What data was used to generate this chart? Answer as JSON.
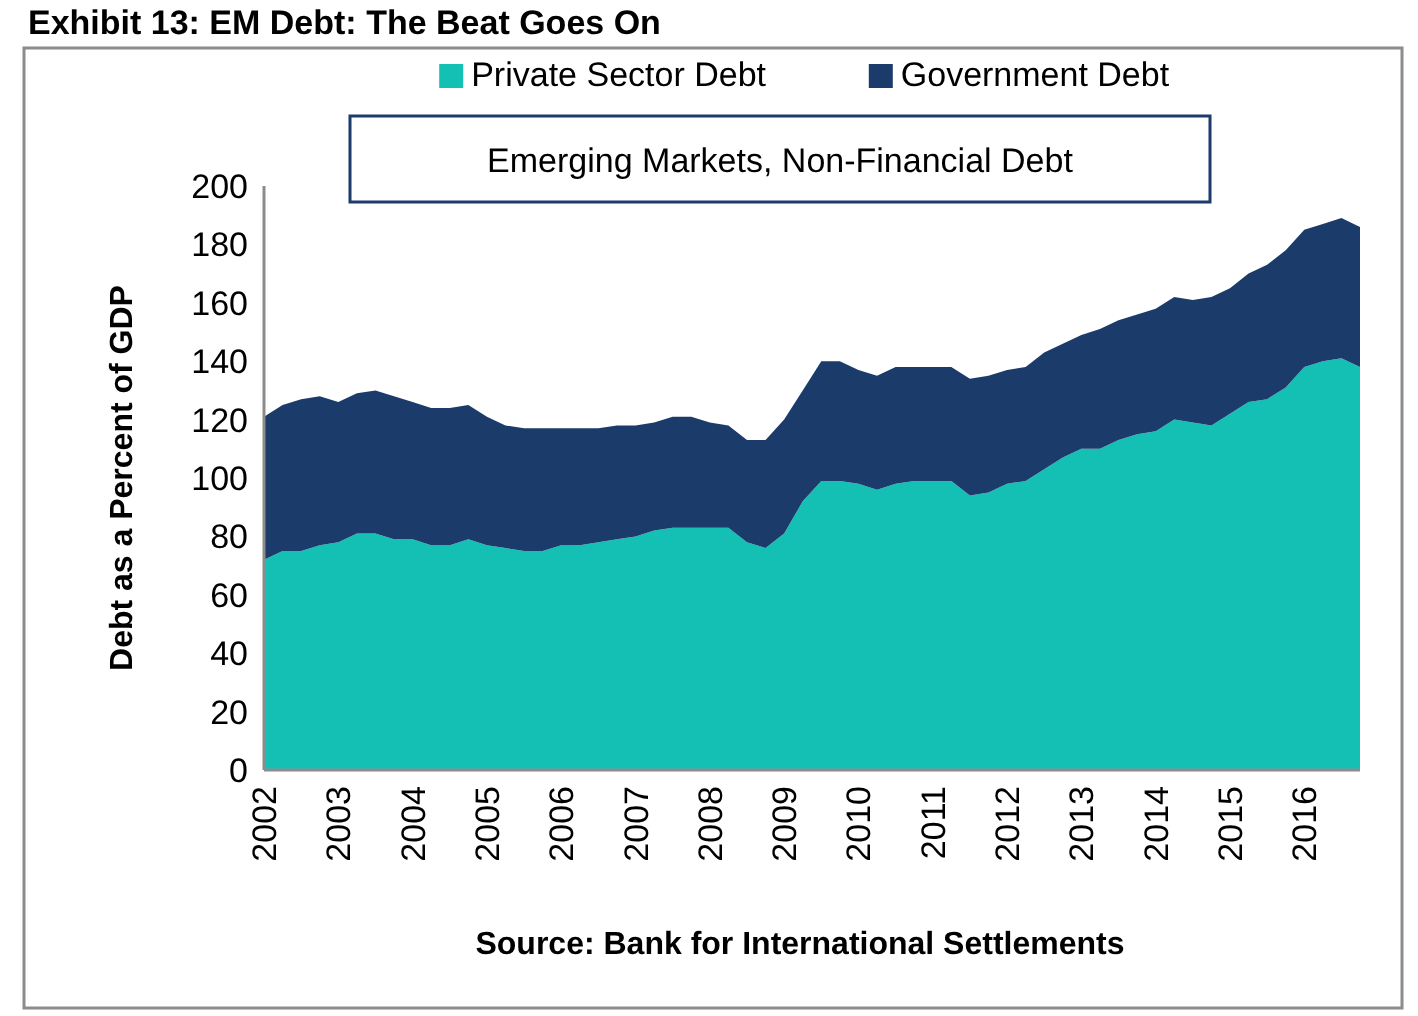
{
  "chart_data": {
    "type": "area",
    "title": "Exhibit 13: EM Debt: The Beat Goes On",
    "subtitle": "Emerging Markets, Non-Financial Debt",
    "ylabel": "Debt as a Percent of GDP",
    "annotations": [
      "Source: Bank for International Settlements"
    ],
    "categories": [
      "2002",
      null,
      null,
      null,
      "2003",
      null,
      null,
      null,
      "2004",
      null,
      null,
      null,
      "2005",
      null,
      null,
      null,
      "2006",
      null,
      null,
      null,
      "2007",
      null,
      null,
      null,
      "2008",
      null,
      null,
      null,
      "2009",
      null,
      null,
      null,
      "2010",
      null,
      null,
      null,
      "2011",
      null,
      null,
      null,
      "2012",
      null,
      null,
      null,
      "2013",
      null,
      null,
      null,
      "2014",
      null,
      null,
      null,
      "2015",
      null,
      null,
      null,
      "2016",
      null,
      null,
      null
    ],
    "stacked": true,
    "ylim": [
      0,
      200
    ],
    "yticks": [
      0,
      20,
      40,
      60,
      80,
      100,
      120,
      140,
      160,
      180,
      200
    ],
    "grid": false,
    "legend": "top",
    "series": [
      {
        "name": "Private Sector Debt",
        "color": "#14c0b4",
        "values": [
          72,
          75,
          75,
          77,
          78,
          81,
          81,
          79,
          79,
          77,
          77,
          79,
          77,
          76,
          75,
          75,
          77,
          77,
          78,
          79,
          80,
          82,
          83,
          83,
          83,
          83,
          78,
          76,
          81,
          92,
          99,
          99,
          98,
          96,
          98,
          99,
          99,
          99,
          94,
          95,
          98,
          99,
          103,
          107,
          110,
          110,
          113,
          115,
          116,
          120,
          119,
          118,
          122,
          126,
          127,
          131,
          138,
          140,
          141,
          138
        ]
      },
      {
        "name": "Government Debt",
        "color": "#1b3b6b",
        "values": [
          49,
          50,
          52,
          51,
          48,
          48,
          49,
          49,
          47,
          47,
          47,
          46,
          44,
          42,
          42,
          42,
          40,
          40,
          39,
          39,
          38,
          37,
          38,
          38,
          36,
          35,
          35,
          37,
          39,
          38,
          41,
          41,
          39,
          39,
          40,
          39,
          39,
          39,
          40,
          40,
          39,
          39,
          40,
          39,
          39,
          41,
          41,
          41,
          42,
          42,
          42,
          44,
          43,
          44,
          46,
          47,
          47,
          47,
          48,
          48
        ]
      }
    ]
  }
}
